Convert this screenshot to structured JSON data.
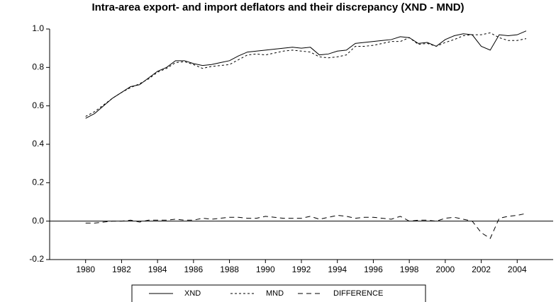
{
  "chart_data": {
    "type": "line",
    "title": "Intra-area export- and import deflators and their discrepancy (XND - MND)",
    "x": [
      1980.0,
      1980.5,
      1981.0,
      1981.5,
      1982.0,
      1982.5,
      1983.0,
      1983.5,
      1984.0,
      1984.5,
      1985.0,
      1985.5,
      1986.0,
      1986.5,
      1987.0,
      1987.5,
      1988.0,
      1988.5,
      1989.0,
      1989.5,
      1990.0,
      1990.5,
      1991.0,
      1991.5,
      1992.0,
      1992.5,
      1993.0,
      1993.5,
      1994.0,
      1994.5,
      1995.0,
      1995.5,
      1996.0,
      1996.5,
      1997.0,
      1997.5,
      1998.0,
      1998.5,
      1999.0,
      1999.5,
      2000.0,
      2000.5,
      2001.0,
      2001.5,
      2002.0,
      2002.5,
      2003.0,
      2003.5,
      2004.0,
      2004.5
    ],
    "series": [
      {
        "name": "XND",
        "color": "#000000",
        "style": "solid",
        "values": [
          0.535,
          0.56,
          0.6,
          0.64,
          0.67,
          0.7,
          0.71,
          0.745,
          0.78,
          0.8,
          0.835,
          0.835,
          0.82,
          0.81,
          0.815,
          0.825,
          0.835,
          0.86,
          0.88,
          0.885,
          0.89,
          0.895,
          0.9,
          0.905,
          0.9,
          0.905,
          0.865,
          0.87,
          0.885,
          0.89,
          0.925,
          0.93,
          0.935,
          0.94,
          0.945,
          0.96,
          0.955,
          0.925,
          0.93,
          0.91,
          0.945,
          0.965,
          0.975,
          0.97,
          0.91,
          0.89,
          0.97,
          0.965,
          0.97,
          0.99
        ]
      },
      {
        "name": "MND",
        "color": "#000000",
        "style": "dotted",
        "values": [
          0.545,
          0.57,
          0.605,
          0.64,
          0.67,
          0.695,
          0.715,
          0.74,
          0.775,
          0.795,
          0.825,
          0.83,
          0.815,
          0.795,
          0.805,
          0.81,
          0.815,
          0.84,
          0.865,
          0.87,
          0.865,
          0.875,
          0.885,
          0.89,
          0.885,
          0.88,
          0.855,
          0.85,
          0.855,
          0.865,
          0.91,
          0.91,
          0.915,
          0.925,
          0.935,
          0.935,
          0.955,
          0.92,
          0.925,
          0.91,
          0.93,
          0.945,
          0.965,
          0.97,
          0.97,
          0.98,
          0.955,
          0.94,
          0.94,
          0.95
        ]
      },
      {
        "name": "DIFFERENCE",
        "color": "#000000",
        "style": "dashed",
        "values": [
          -0.01,
          -0.01,
          -0.005,
          0,
          0,
          0.005,
          -0.005,
          0.005,
          0.005,
          0.005,
          0.01,
          0.005,
          0.005,
          0.015,
          0.01,
          0.015,
          0.02,
          0.02,
          0.015,
          0.015,
          0.025,
          0.02,
          0.015,
          0.015,
          0.015,
          0.025,
          0.01,
          0.02,
          0.03,
          0.025,
          0.015,
          0.02,
          0.02,
          0.015,
          0.01,
          0.025,
          0,
          0.005,
          0.005,
          0,
          0.015,
          0.02,
          0.01,
          0,
          -0.06,
          -0.09,
          0.015,
          0.025,
          0.03,
          0.04
        ]
      }
    ],
    "xlim": [
      1978,
      2006
    ],
    "xticks": [
      1980,
      1982,
      1984,
      1986,
      1988,
      1990,
      1992,
      1994,
      1996,
      1998,
      2000,
      2002,
      2004
    ],
    "ylim": [
      -0.2,
      1.0
    ],
    "yticks": [
      -0.2,
      {
        "value": 0,
        "label": "0.0"
      },
      0.2,
      0.4,
      0.6,
      0.8,
      {
        "value": 1,
        "label": "1.0"
      }
    ],
    "zero_line": true,
    "legend": "bottom"
  }
}
